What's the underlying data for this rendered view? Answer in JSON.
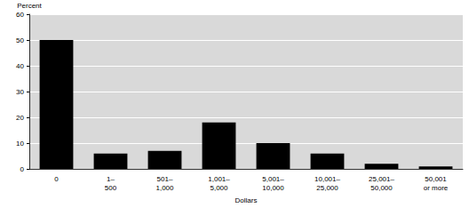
{
  "chart_data": {
    "type": "bar",
    "y_label": "Percent",
    "x_label": "Dollars",
    "categories": [
      "0",
      "1–500",
      "501–1,000",
      "1,001–5,000",
      "5,001–10,000",
      "10,001–25,000",
      "25,001–50,000",
      "50,001 or more"
    ],
    "values": [
      50,
      6,
      7,
      18,
      10,
      6,
      2,
      1
    ],
    "color": "#000000",
    "ylim": [
      0,
      60
    ],
    "yticks": [
      0,
      10,
      20,
      30,
      40,
      50,
      60
    ],
    "grid": true
  }
}
